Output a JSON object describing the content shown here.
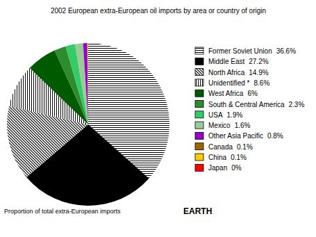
{
  "chart_data": {
    "type": "pie",
    "title": "2002 European extra-European oil imports by area or country of origin",
    "categories": [
      "Former Soviet Union",
      "Middle East",
      "North Africa",
      "Unidentified *",
      "West Africa",
      "South & Central America",
      "USA",
      "Mexico",
      "Other Asia Pacific",
      "Canada",
      "China",
      "Japan"
    ],
    "values": [
      36.6,
      27.2,
      14.9,
      8.6,
      6,
      2.3,
      1.9,
      1.6,
      0.8,
      0.1,
      0.1,
      0
    ],
    "value_labels": [
      "36.6%",
      "27.2%",
      "14.9%",
      "8.6%",
      "6%",
      "2.3%",
      "1.9%",
      "1.6%",
      "0.8%",
      "0.1%",
      "0.1%",
      "0%"
    ],
    "colors": [
      "hatch-horizontal",
      "#000000",
      "hatch-diagonal",
      "hatch-vertical",
      "#005a00",
      "#2e8b2e",
      "#33cc66",
      "#99cc99",
      "#9900cc",
      "#996600",
      "#ffcc00",
      "#ff0000"
    ],
    "legend": "right",
    "annotations": [
      "Proportion of total extra-European imports",
      "EARTH"
    ]
  }
}
